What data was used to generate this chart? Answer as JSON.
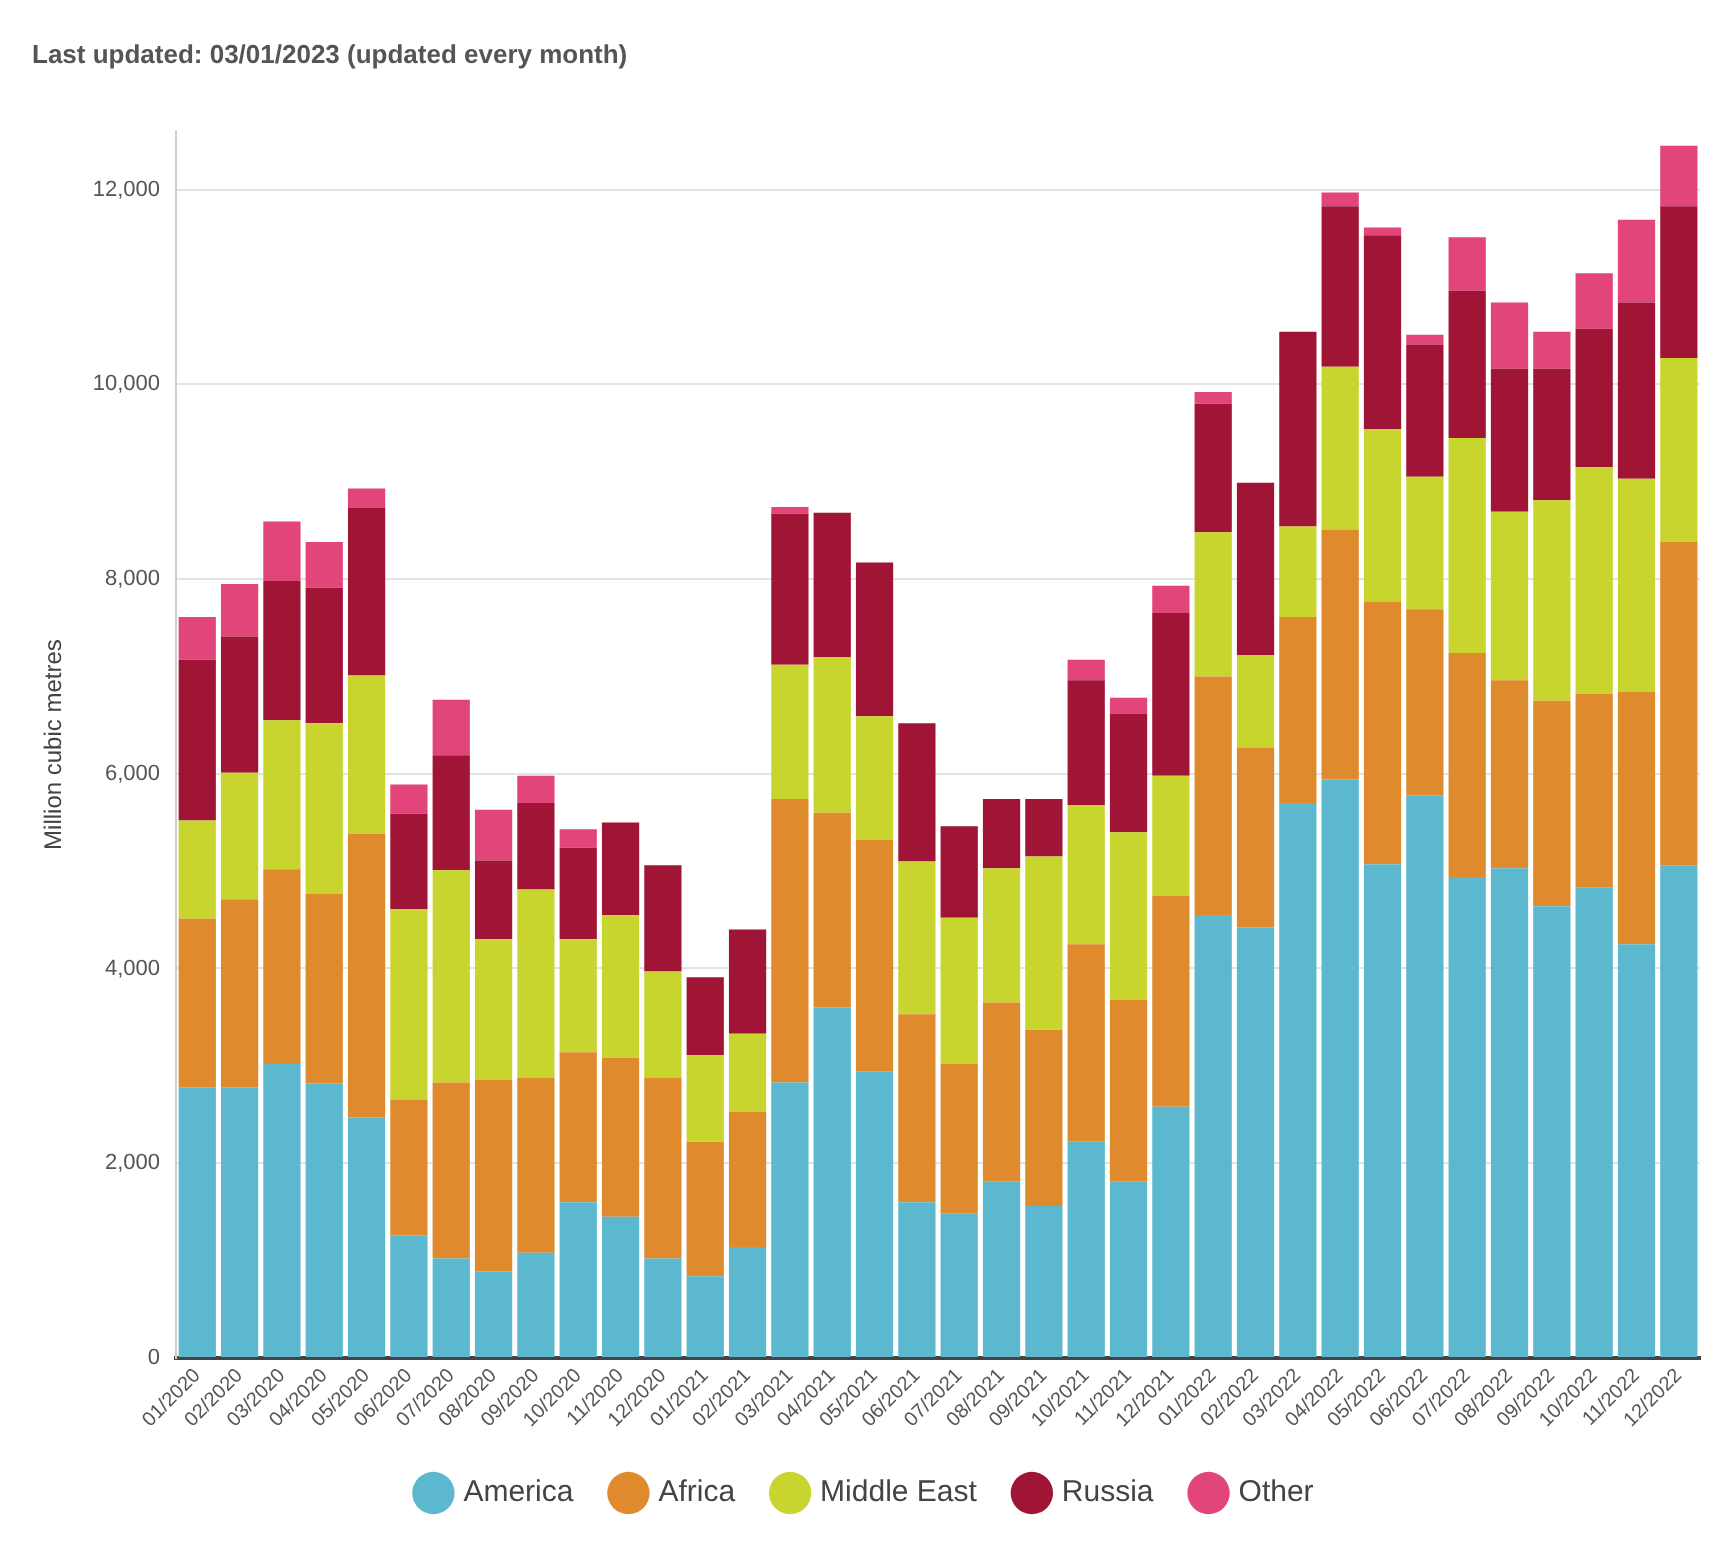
{
  "chart_data": {
    "type": "bar",
    "title": "Last updated: 03/01/2023 (updated every month)",
    "ylabel": "Million cubic metres",
    "stacked": true,
    "categories": [
      "01/2020",
      "02/2020",
      "03/2020",
      "04/2020",
      "05/2020",
      "06/2020",
      "07/2020",
      "08/2020",
      "09/2020",
      "10/2020",
      "11/2020",
      "12/2020",
      "01/2021",
      "02/2021",
      "03/2021",
      "04/2021",
      "05/2021",
      "06/2021",
      "07/2021",
      "08/2021",
      "09/2021",
      "10/2021",
      "11/2021",
      "12/2021",
      "01/2022",
      "02/2022",
      "03/2022",
      "04/2022",
      "05/2022",
      "06/2022",
      "07/2022",
      "08/2022",
      "09/2022",
      "10/2022",
      "11/2022",
      "12/2022"
    ],
    "series": [
      {
        "name": "America",
        "color": "#5bb8cf",
        "values": [
          2780,
          2780,
          3020,
          2820,
          2470,
          1260,
          1020,
          890,
          1080,
          1600,
          1450,
          1020,
          840,
          1140,
          2830,
          3600,
          2940,
          1600,
          1480,
          1810,
          1560,
          2220,
          1810,
          2580,
          4550,
          4420,
          5700,
          5940,
          5070,
          5780,
          4940,
          5030,
          4640,
          4830,
          4250,
          5060
        ]
      },
      {
        "name": "Africa",
        "color": "#e08a2e",
        "values": [
          1730,
          1930,
          2000,
          1950,
          2910,
          1390,
          1810,
          1970,
          1800,
          1540,
          1630,
          1860,
          1380,
          1390,
          2910,
          2000,
          2380,
          1930,
          1540,
          1840,
          1810,
          2030,
          1870,
          2170,
          2450,
          1850,
          1910,
          2570,
          2700,
          1910,
          2300,
          1930,
          2110,
          1990,
          2590,
          3320
        ]
      },
      {
        "name": "Middle East",
        "color": "#c8d52f",
        "values": [
          1010,
          1300,
          1530,
          1750,
          1630,
          1960,
          2180,
          1440,
          1930,
          1160,
          1470,
          1090,
          890,
          800,
          1380,
          1600,
          1270,
          1570,
          1500,
          1380,
          1780,
          1430,
          1720,
          1230,
          1480,
          950,
          930,
          1670,
          1770,
          1360,
          2210,
          1730,
          2060,
          2330,
          2190,
          1890
        ]
      },
      {
        "name": "Russia",
        "color": "#a01535",
        "values": [
          1650,
          1400,
          1430,
          1390,
          1720,
          980,
          1180,
          810,
          890,
          940,
          950,
          1090,
          800,
          1070,
          1550,
          1480,
          1580,
          1420,
          940,
          710,
          590,
          1280,
          1220,
          1670,
          1320,
          1770,
          2000,
          1650,
          1990,
          1360,
          1510,
          1470,
          1350,
          1420,
          1810,
          1560
        ]
      },
      {
        "name": "Other",
        "color": "#e2457a",
        "values": [
          440,
          540,
          610,
          470,
          200,
          300,
          570,
          520,
          280,
          190,
          0,
          0,
          0,
          0,
          70,
          0,
          0,
          0,
          0,
          0,
          0,
          210,
          160,
          280,
          120,
          0,
          0,
          140,
          80,
          100,
          550,
          680,
          380,
          570,
          850,
          620
        ]
      }
    ],
    "ylim": [
      0,
      12600
    ],
    "yticks": [
      0,
      {
        "value": 2000,
        "label": "2,000"
      },
      {
        "value": 4000,
        "label": "4,000"
      },
      {
        "value": 6000,
        "label": "6,000"
      },
      {
        "value": 8000,
        "label": "8,000"
      },
      {
        "value": 10000,
        "label": "10,000"
      },
      {
        "value": 12000,
        "label": "12,000"
      }
    ],
    "grid": "y",
    "legend": "bottom"
  }
}
